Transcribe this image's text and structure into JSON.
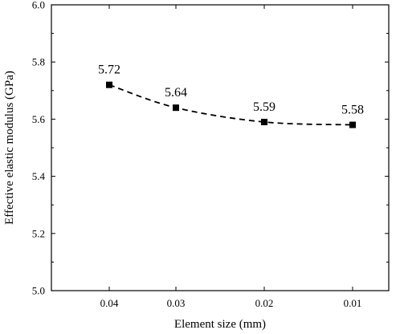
{
  "chart_data": {
    "type": "line",
    "title": "",
    "xlabel": "Element size (mm)",
    "ylabel": "Effective elastic modulus (GPa)",
    "categories": [
      "0.04",
      "0.03",
      "0.02",
      "0.01"
    ],
    "series": [
      {
        "values": [
          5.72,
          5.64,
          5.59,
          5.58
        ],
        "data_labels": [
          "5.72",
          "5.64",
          "5.59",
          "5.58"
        ],
        "line_style": "dashed",
        "marker": "square",
        "color": "#000000"
      }
    ],
    "ylim": [
      5.0,
      6.0
    ],
    "yticks": [
      "5.0",
      "5.2",
      "5.4",
      "5.6",
      "5.8",
      "6.0"
    ],
    "grid": false,
    "legend": "none",
    "frame": "box"
  }
}
